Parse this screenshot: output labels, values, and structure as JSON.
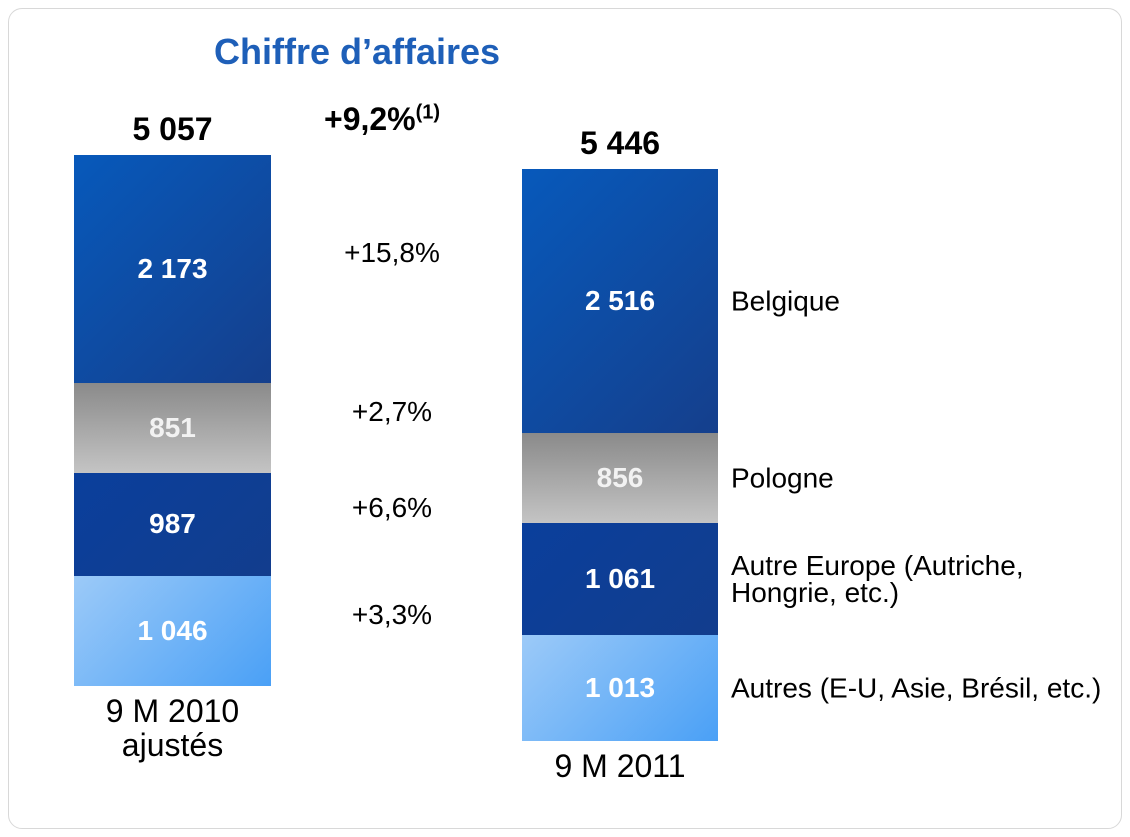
{
  "chart_data": {
    "type": "stacked-bar",
    "title": "Chiffre d’affaires",
    "categories": [
      "9 M 2010 ajustés",
      "9 M 2011"
    ],
    "totals": [
      5057,
      5446
    ],
    "total_labels": [
      "5 057",
      "5 446"
    ],
    "total_growth": 9.2,
    "total_growth_label": "+9,2%",
    "total_growth_note": "(1)",
    "series": [
      {
        "name": "Autres (E-U, Asie, Brésil, etc.)",
        "color": "#5ba9f4",
        "values": [
          1046,
          1013
        ],
        "value_labels": [
          "1 046",
          "1 013"
        ],
        "growth": 3.3,
        "growth_label": "+3,3%"
      },
      {
        "name": "Autre Europe (Autriche, Hongrie, etc.)",
        "color": "#0e429c",
        "values": [
          987,
          1061
        ],
        "value_labels": [
          "987",
          "1 061"
        ],
        "growth": 6.6,
        "growth_label": "+6,6%"
      },
      {
        "name": "Pologne",
        "color": "#a3a3a3",
        "values": [
          851,
          856
        ],
        "value_labels": [
          "851",
          "856"
        ],
        "growth": 2.7,
        "growth_label": "+2,7%"
      },
      {
        "name": "Belgique",
        "color": "#0a52ad",
        "values": [
          2173,
          2516
        ],
        "value_labels": [
          "2 173",
          "2 516"
        ],
        "growth": 15.8,
        "growth_label": "+15,8%"
      }
    ]
  }
}
